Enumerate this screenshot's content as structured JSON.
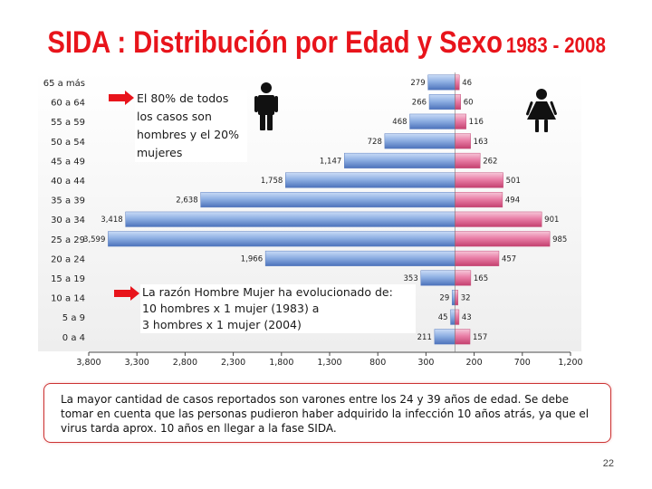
{
  "slide": {
    "title_main": "SIDA : Distribución por Edad y Sexo",
    "title_years": "1983 - 2008",
    "note_top": "El 80% de todos los casos son hombres y el 20% mujeres",
    "note_bottom_line1": "La razón Hombre Mujer ha evolucionado de:",
    "note_bottom_line2": "10 hombres x 1 mujer (1983)  a",
    "note_bottom_line3": "3 hombres x 1 mujer (2004)",
    "info_text": "La mayor cantidad de casos reportados son varones entre los 24 y 39 años de edad. Se debe tomar en cuenta que las personas pudieron haber adquirido la infección 10 años atrás, ya que el virus tarda aprox. 10 años en  llegar a la fase SIDA.",
    "page_number": "22",
    "icons": [
      "male-figure-icon",
      "female-figure-icon",
      "arrow-right-icon"
    ]
  },
  "chart_data": {
    "type": "bar",
    "orientation": "horizontal-population-pyramid",
    "categories": [
      "65 a más",
      "60 a 64",
      "55 a 59",
      "50 a 54",
      "45 a 49",
      "40 a 44",
      "35 a 39",
      "30 a 34",
      "25 a 29",
      "20 a 24",
      "15 a 19",
      "10 a 14",
      "5 a 9",
      "0 a 4"
    ],
    "series": [
      {
        "side": "male",
        "color": "#7ea0d8",
        "values": [
          279,
          266,
          468,
          728,
          1147,
          1758,
          2638,
          3418,
          3599,
          1966,
          353,
          29,
          45,
          211
        ],
        "labels": [
          "279",
          "266",
          "468",
          "728",
          "1,147",
          "1,758",
          "2,638",
          "3,418",
          "3,599",
          "1,966",
          "353",
          "29",
          "45",
          "211"
        ]
      },
      {
        "side": "female",
        "color": "#e8709c",
        "values": [
          46,
          60,
          116,
          163,
          262,
          501,
          494,
          901,
          985,
          457,
          165,
          32,
          43,
          157
        ],
        "labels": [
          "46",
          "60",
          "116",
          "163",
          "262",
          "501",
          "494",
          "901",
          "985",
          "457",
          "165",
          "32",
          "43",
          "157"
        ]
      }
    ],
    "x_ticks": [
      "3,800",
      "3,300",
      "2,800",
      "2,300",
      "1,800",
      "1,300",
      "800",
      "300",
      "200",
      "700",
      "1,200"
    ],
    "xlim": [
      -3800,
      1200
    ],
    "grid": false,
    "legend": "none"
  }
}
